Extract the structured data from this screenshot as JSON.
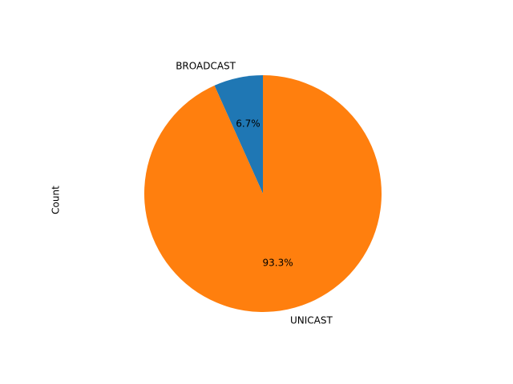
{
  "chart_data": {
    "type": "pie",
    "title": "",
    "ylabel": "Count",
    "startangle": 90,
    "counterclock": true,
    "slices": [
      {
        "label": "BROADCAST",
        "value": 6.7,
        "pct_label": "6.7%",
        "color": "#1f77b4"
      },
      {
        "label": "UNICAST",
        "value": 93.3,
        "pct_label": "93.3%",
        "color": "#ff7f0e"
      }
    ]
  }
}
